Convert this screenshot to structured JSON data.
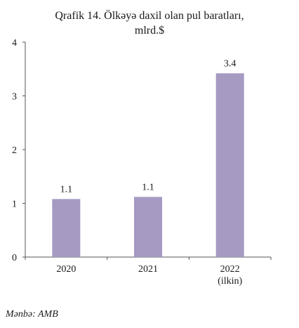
{
  "chart_data": {
    "type": "bar",
    "title_lines": [
      "Qrafik 14. Ölkəyə daxil olan pul baratları,",
      "mlrd.$"
    ],
    "categories": [
      "2020",
      "2021",
      "2022"
    ],
    "category_sublabels": [
      "",
      "",
      "(ilkin)"
    ],
    "values": [
      1.08,
      1.12,
      3.42
    ],
    "data_labels": [
      "1.1",
      "1.1",
      "3.4"
    ],
    "ylim": [
      0,
      4
    ],
    "yticks": [
      0,
      1,
      2,
      3,
      4
    ],
    "bar_color": "#a699c2",
    "grid": false,
    "legend": "none"
  },
  "source": "Mənbə: AMB"
}
